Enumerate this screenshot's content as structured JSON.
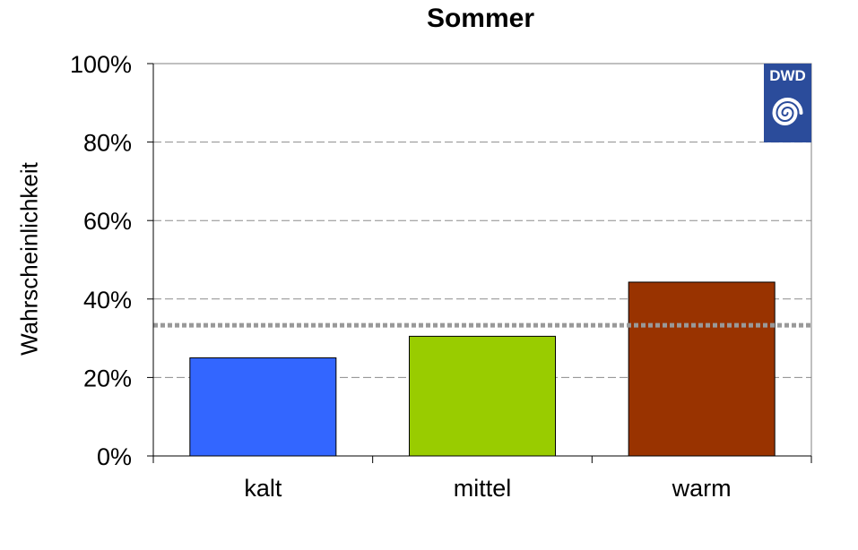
{
  "chart_data": {
    "type": "bar",
    "title": "Sommer",
    "xlabel": "",
    "ylabel": "Wahrscheinlichkeit",
    "categories": [
      "kalt",
      "mittel",
      "warm"
    ],
    "values": [
      25,
      30.5,
      44.3
    ],
    "ylim": [
      0,
      100
    ],
    "yticks": [
      0,
      20,
      40,
      60,
      80,
      100
    ],
    "ytick_labels": [
      "0%",
      "20%",
      "40%",
      "60%",
      "80%",
      "100%"
    ],
    "bar_colors": [
      "#3366FF",
      "#99CC00",
      "#993300"
    ],
    "grid": true,
    "reference_line": 33.3,
    "reference_line_color": "#999999",
    "legend": "none"
  },
  "logo": {
    "text": "DWD",
    "background": "#2B4C9B",
    "foreground": "#ffffff",
    "icon": "spiral-icon"
  }
}
